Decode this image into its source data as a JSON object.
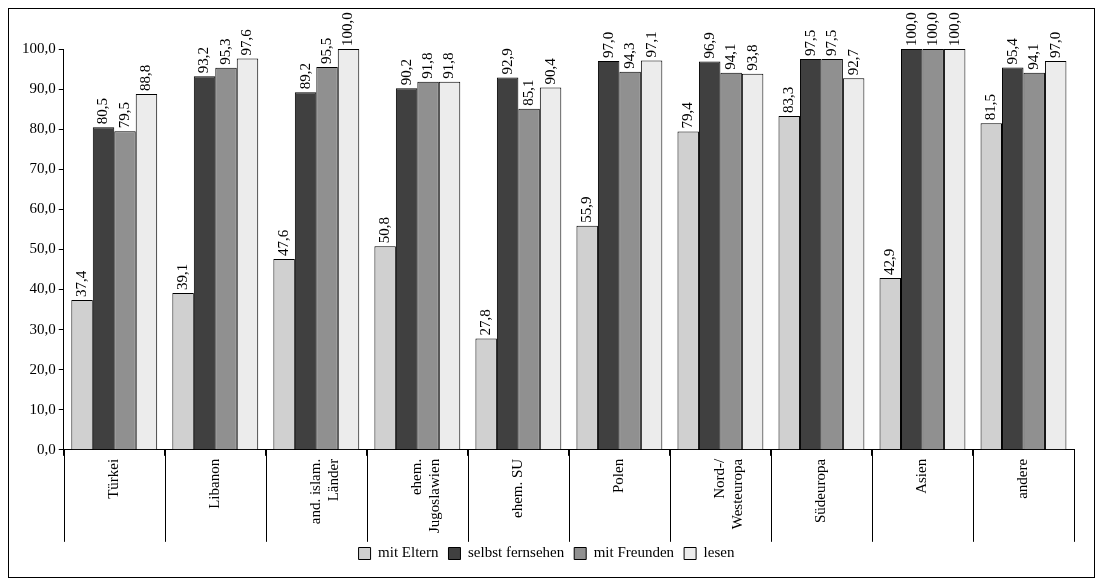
{
  "chart_data": {
    "type": "bar",
    "categories": [
      "Türkei",
      "Libanon",
      "and. islam.\nLänder",
      "ehem.\nJugoslawien",
      "ehem. SU",
      "Polen",
      "Nord-/\nWesteuropa",
      "Südeuropa",
      "Asien",
      "andere"
    ],
    "series": [
      {
        "name": "mit Eltern",
        "color": "#d0d0d0",
        "values": [
          37.4,
          39.1,
          47.6,
          50.8,
          27.8,
          55.9,
          79.4,
          83.3,
          42.9,
          81.5
        ],
        "value_labels": [
          "37,4",
          "39,1",
          "47,6",
          "50,8",
          "27,8",
          "55,9",
          "79,4",
          "83,3",
          "42,9",
          "81,5"
        ]
      },
      {
        "name": "selbst fernsehen",
        "color": "#404040",
        "values": [
          80.5,
          93.2,
          89.2,
          90.2,
          92.9,
          97.0,
          96.9,
          97.5,
          100.0,
          95.4
        ],
        "value_labels": [
          "80,5",
          "93,2",
          "89,2",
          "90,2",
          "92,9",
          "97,0",
          "96,9",
          "97,5",
          "100,0",
          "95,4"
        ]
      },
      {
        "name": "mit Freunden",
        "color": "#909090",
        "values": [
          79.5,
          95.3,
          95.5,
          91.8,
          85.1,
          94.3,
          94.1,
          97.5,
          100.0,
          94.1
        ],
        "value_labels": [
          "79,5",
          "95,3",
          "95,5",
          "91,8",
          "85,1",
          "94,3",
          "94,1",
          "97,5",
          "100,0",
          "94,1"
        ]
      },
      {
        "name": "lesen",
        "color": "#ececec",
        "values": [
          88.8,
          97.6,
          100.0,
          91.8,
          90.4,
          97.1,
          93.8,
          92.7,
          100.0,
          97.0
        ],
        "value_labels": [
          "88,8",
          "97,6",
          "100,0",
          "91,8",
          "90,4",
          "97,1",
          "93,8",
          "92,7",
          "100,0",
          "97,0"
        ]
      }
    ],
    "ylim": [
      0,
      100
    ],
    "yticks": [
      {
        "value": 0,
        "label": "0,0"
      },
      {
        "value": 10,
        "label": "10,0"
      },
      {
        "value": 20,
        "label": "20,0"
      },
      {
        "value": 30,
        "label": "30,0"
      },
      {
        "value": 40,
        "label": "40,0"
      },
      {
        "value": 50,
        "label": "50,0"
      },
      {
        "value": 60,
        "label": "60,0"
      },
      {
        "value": 70,
        "label": "70,0"
      },
      {
        "value": 80,
        "label": "80,0"
      },
      {
        "value": 90,
        "label": "90,0"
      },
      {
        "value": 100,
        "label": "100,0"
      }
    ],
    "grid": false,
    "legend": "bottom"
  }
}
